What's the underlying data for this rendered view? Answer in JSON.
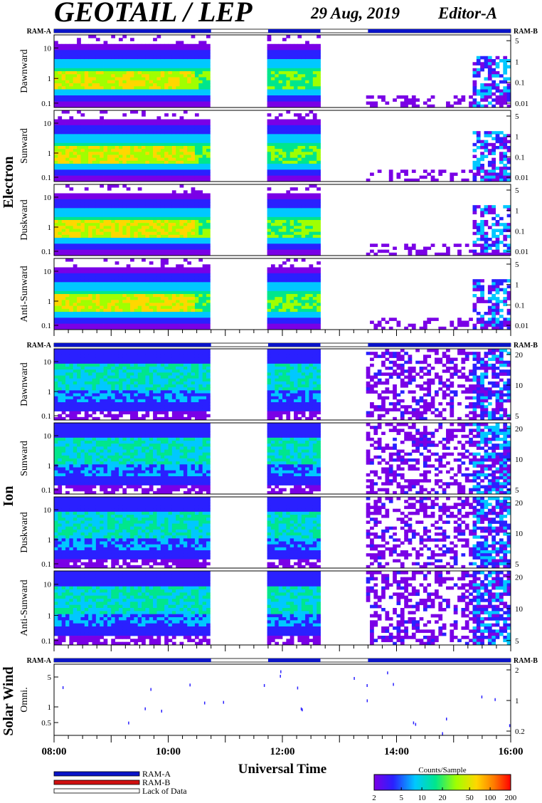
{
  "header": {
    "title": "GEOTAIL / LEP",
    "date": "29 Aug, 2019",
    "editor": "Editor-A"
  },
  "ram_labels": {
    "left": "RAM-A",
    "right": "RAM-B"
  },
  "ram_status": {
    "comment_free": true,
    "segments": [
      {
        "from": "08:00",
        "to": "10:45",
        "mode": "RAM-A"
      },
      {
        "from": "10:45",
        "to": "11:45",
        "mode": "Lack of Data"
      },
      {
        "from": "11:45",
        "to": "12:40",
        "mode": "RAM-A"
      },
      {
        "from": "12:40",
        "to": "13:30",
        "mode": "Lack of Data"
      },
      {
        "from": "13:30",
        "to": "16:00",
        "mode": "RAM-A"
      }
    ]
  },
  "groups": {
    "electron": "Electron",
    "ion": "Ion",
    "solar_wind": "Solar Wind"
  },
  "chart_data": [
    {
      "type": "heatmap",
      "group": "Electron",
      "direction": "Dawnward",
      "left_ticks": [
        "10",
        "1",
        "0.1"
      ],
      "right_ticks": [
        "5",
        "1",
        "0.1",
        "0.01"
      ],
      "data_gaps": [
        [
          "10:45",
          "11:45"
        ],
        [
          "12:40",
          "13:30"
        ]
      ]
    },
    {
      "type": "heatmap",
      "group": "Electron",
      "direction": "Sunward",
      "left_ticks": [
        "10",
        "1",
        "0.1"
      ],
      "right_ticks": [
        "5",
        "1",
        "0.1",
        "0.01"
      ],
      "data_gaps": [
        [
          "10:45",
          "11:45"
        ],
        [
          "12:40",
          "13:30"
        ]
      ]
    },
    {
      "type": "heatmap",
      "group": "Electron",
      "direction": "Duskward",
      "left_ticks": [
        "10",
        "1",
        "0.1"
      ],
      "right_ticks": [
        "5",
        "1",
        "0.1",
        "0.01"
      ],
      "data_gaps": [
        [
          "10:45",
          "11:45"
        ],
        [
          "12:40",
          "13:30"
        ]
      ]
    },
    {
      "type": "heatmap",
      "group": "Electron",
      "direction": "Anti-Sunward",
      "left_ticks": [
        "10",
        "1",
        "0.1"
      ],
      "right_ticks": [
        "5",
        "1",
        "0.1",
        "0.01"
      ],
      "data_gaps": [
        [
          "10:45",
          "11:45"
        ],
        [
          "12:40",
          "13:30"
        ]
      ]
    },
    {
      "type": "heatmap",
      "group": "Ion",
      "direction": "Dawnward",
      "left_ticks": [
        "10",
        "1",
        "0.1"
      ],
      "right_ticks": [
        "20",
        "10",
        "5"
      ],
      "data_gaps": [
        [
          "10:45",
          "11:45"
        ],
        [
          "12:40",
          "13:30"
        ]
      ]
    },
    {
      "type": "heatmap",
      "group": "Ion",
      "direction": "Sunward",
      "left_ticks": [
        "10",
        "1",
        "0.1"
      ],
      "right_ticks": [
        "20",
        "10",
        "5"
      ],
      "data_gaps": [
        [
          "10:45",
          "11:45"
        ],
        [
          "12:40",
          "13:30"
        ]
      ]
    },
    {
      "type": "heatmap",
      "group": "Ion",
      "direction": "Duskward",
      "left_ticks": [
        "10",
        "1",
        "0.1"
      ],
      "right_ticks": [
        "20",
        "10",
        "5"
      ],
      "data_gaps": [
        [
          "10:45",
          "11:45"
        ],
        [
          "12:40",
          "13:30"
        ]
      ]
    },
    {
      "type": "heatmap",
      "group": "Ion",
      "direction": "Anti-Sunward",
      "left_ticks": [
        "10",
        "1",
        "0.1"
      ],
      "right_ticks": [
        "20",
        "10",
        "5"
      ],
      "data_gaps": [
        [
          "10:45",
          "11:45"
        ],
        [
          "12:40",
          "13:30"
        ]
      ]
    },
    {
      "type": "heatmap",
      "group": "Solar Wind",
      "direction": "Omni.",
      "left_ticks": [
        "5",
        "1",
        "0.5"
      ],
      "right_ticks": [
        "2",
        "1",
        "0.2"
      ],
      "sparse": true
    }
  ],
  "x_axis": {
    "label": "Universal Time",
    "ticks": [
      "08:00",
      "10:00",
      "12:00",
      "14:00",
      "16:00"
    ],
    "range": [
      "08:00",
      "16:00"
    ]
  },
  "legend": {
    "items": [
      {
        "label": "RAM-A",
        "color": "#0a14c8"
      },
      {
        "label": "RAM-B",
        "color": "#d01010"
      },
      {
        "label": "Lack of Data",
        "color": "#ffffff"
      }
    ]
  },
  "colorbar": {
    "title": "Counts/Sample",
    "ticks": [
      "2",
      "5",
      "10",
      "20",
      "50",
      "100",
      "200"
    ],
    "colors": [
      "#7a00e6",
      "#2a20ff",
      "#00c8ff",
      "#00e68c",
      "#a0ff00",
      "#ffd700",
      "#ff7800",
      "#ff0000"
    ]
  }
}
